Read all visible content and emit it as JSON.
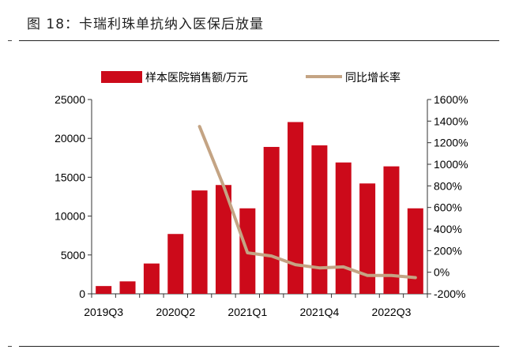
{
  "header": {
    "title": "图 18：卡瑞利珠单抗纳入医保后放量"
  },
  "chart_data": {
    "type": "bar",
    "categories": [
      "2019Q3",
      "2019Q4",
      "2020Q1",
      "2020Q2",
      "2020Q3",
      "2020Q4",
      "2021Q1",
      "2021Q2",
      "2021Q3",
      "2021Q4",
      "2022Q1",
      "2022Q2",
      "2022Q3",
      "2022Q4"
    ],
    "x_tick_labels": [
      "2019Q3",
      "2020Q2",
      "2021Q1",
      "2021Q4",
      "2022Q3"
    ],
    "x_tick_indices": [
      0,
      3,
      6,
      9,
      12
    ],
    "series": [
      {
        "name": "样本医院销售额/万元",
        "type": "bar",
        "axis": "left",
        "color": "#cc0a1a",
        "values": [
          1000,
          1600,
          3900,
          7700,
          13300,
          14000,
          11000,
          18900,
          22100,
          19100,
          16900,
          14200,
          16400,
          11000
        ]
      },
      {
        "name": "同比增长率",
        "type": "line",
        "axis": "right",
        "color": "#c4a484",
        "values": [
          null,
          null,
          null,
          null,
          1350,
          800,
          180,
          150,
          70,
          40,
          50,
          -30,
          -30,
          -50
        ]
      }
    ],
    "y_left": {
      "min": 0,
      "max": 25000,
      "ticks": [
        "0",
        "5000",
        "10000",
        "15000",
        "20000",
        "25000"
      ]
    },
    "y_right": {
      "min": -200,
      "max": 1600,
      "ticks": [
        "-200%",
        "0%",
        "200%",
        "400%",
        "600%",
        "800%",
        "1000%",
        "1200%",
        "1400%",
        "1600%"
      ]
    },
    "legend_position": "top",
    "grid": false
  }
}
